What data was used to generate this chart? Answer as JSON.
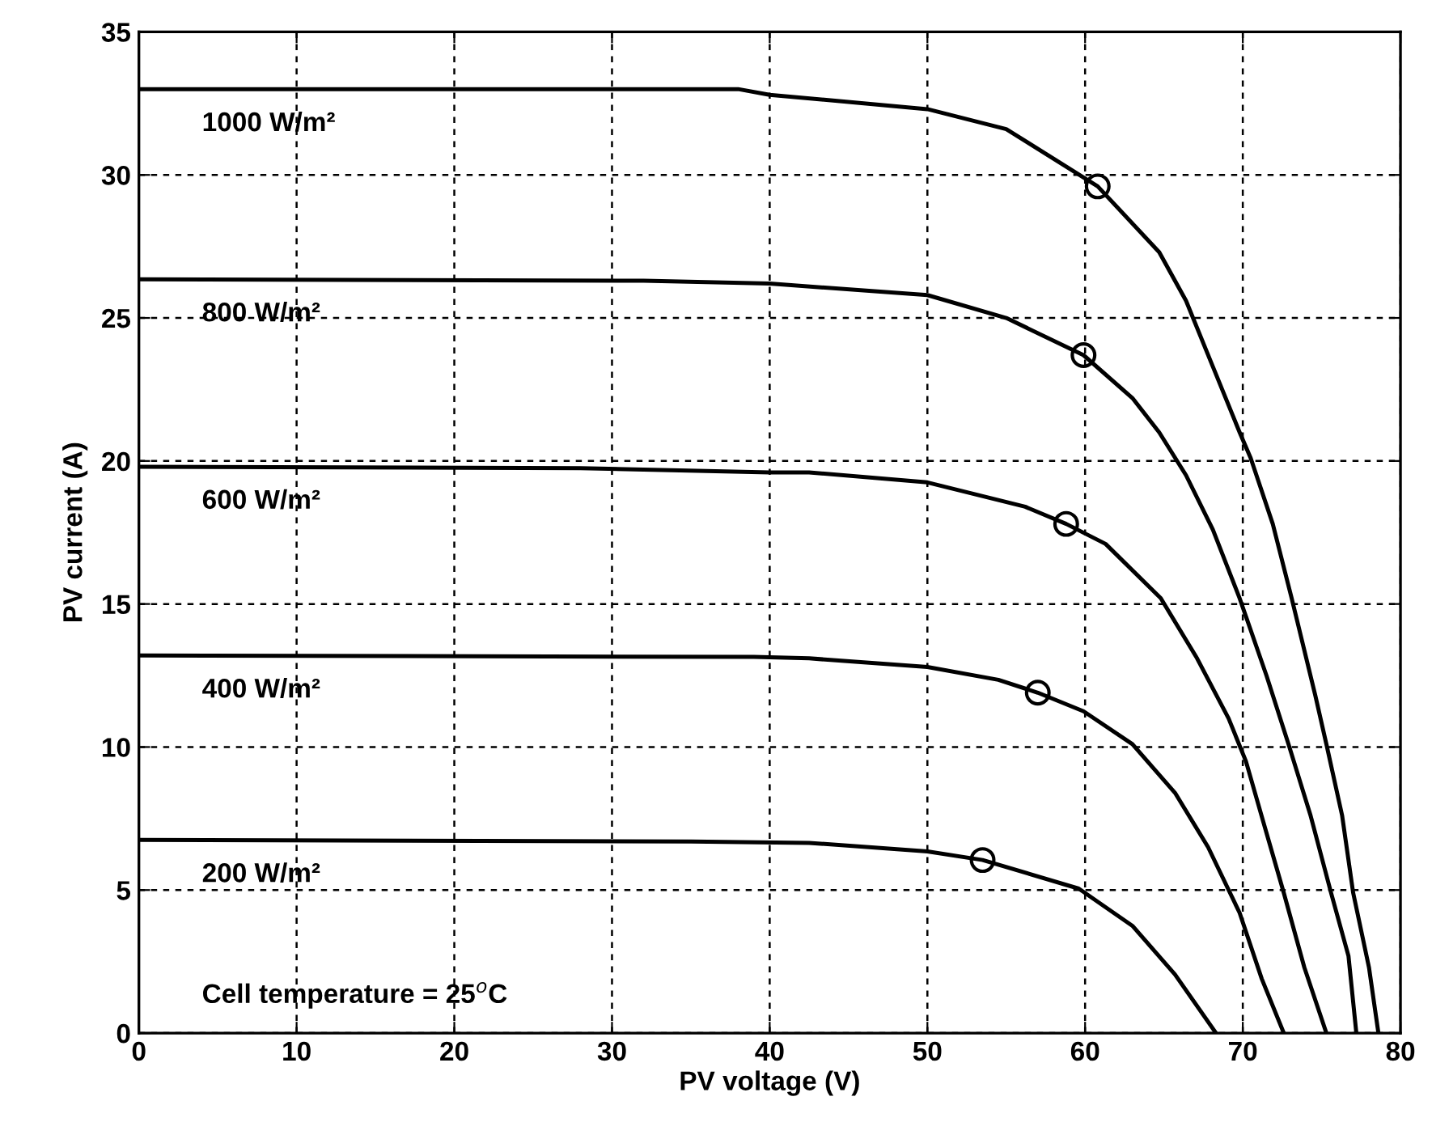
{
  "chart_data": {
    "type": "line",
    "xlabel": "PV voltage (V)",
    "ylabel": "PV current (A)",
    "xlim": [
      0,
      80
    ],
    "ylim": [
      0,
      35
    ],
    "xticks": [
      0,
      10,
      20,
      30,
      40,
      50,
      60,
      70,
      80
    ],
    "yticks": [
      0,
      5,
      10,
      15,
      20,
      25,
      30,
      35
    ],
    "grid": true,
    "legend": false,
    "line_style": "solid",
    "marker": "none",
    "annotations": [
      "Cell temperature = 25$^{o}$C"
    ],
    "series": [
      {
        "name": "1000 W/m²",
        "color": "#000000",
        "x": [
          0,
          38,
          40,
          50,
          55,
          60.8,
          64.7,
          66.4,
          68.1,
          69.8,
          70.5,
          71.9,
          73.1,
          74.6,
          75.3,
          76.3,
          77.0,
          78.0,
          78.6
        ],
        "values": [
          33.0,
          33.0,
          32.8,
          32.3,
          31.6,
          29.6,
          27.3,
          25.6,
          23.3,
          21.0,
          20.1,
          17.8,
          15.2,
          11.8,
          10.1,
          7.6,
          4.9,
          2.3,
          0
        ]
      },
      {
        "name": "800 W/m²",
        "color": "#000000",
        "x": [
          0,
          32,
          40,
          50,
          55,
          59.9,
          63.0,
          64.7,
          66.4,
          68.1,
          69.8,
          71.5,
          72.9,
          74.3,
          75.6,
          76.7,
          77.2
        ],
        "values": [
          26.35,
          26.3,
          26.2,
          25.8,
          25.0,
          23.7,
          22.2,
          21.0,
          19.5,
          17.6,
          15.2,
          12.5,
          10.1,
          7.6,
          4.9,
          2.7,
          0
        ]
      },
      {
        "name": "600 W/m²",
        "color": "#000000",
        "x": [
          0,
          28,
          40,
          42.5,
          50,
          56.2,
          58.8,
          61.3,
          64.8,
          67.1,
          69.1,
          70.2,
          71.5,
          72.6,
          73.9,
          75.3
        ],
        "values": [
          19.8,
          19.75,
          19.6,
          19.6,
          19.25,
          18.4,
          17.8,
          17.1,
          15.2,
          13.1,
          11.0,
          9.5,
          7.0,
          4.9,
          2.3,
          0
        ]
      },
      {
        "name": "400 W/m²",
        "color": "#000000",
        "x": [
          0,
          39,
          42.5,
          50,
          54.5,
          57.0,
          59.9,
          63.0,
          65.7,
          67.8,
          69.8,
          71.2,
          72.6
        ],
        "values": [
          13.2,
          13.15,
          13.1,
          12.8,
          12.35,
          11.9,
          11.25,
          10.1,
          8.4,
          6.5,
          4.2,
          1.9,
          0
        ]
      },
      {
        "name": "200 W/m²",
        "color": "#000000",
        "x": [
          0,
          35,
          42.5,
          50,
          53.5,
          59.6,
          63.0,
          65.7,
          68.3
        ],
        "values": [
          6.75,
          6.7,
          6.65,
          6.35,
          6.05,
          5.05,
          3.75,
          2.05,
          0
        ]
      },
      {
        "type": "scatter",
        "marker": "circle",
        "color": "#000000",
        "x": [
          60.8,
          59.9,
          58.8,
          57.0,
          53.5
        ],
        "values": [
          29.6,
          23.7,
          17.8,
          11.9,
          6.05
        ]
      }
    ]
  }
}
